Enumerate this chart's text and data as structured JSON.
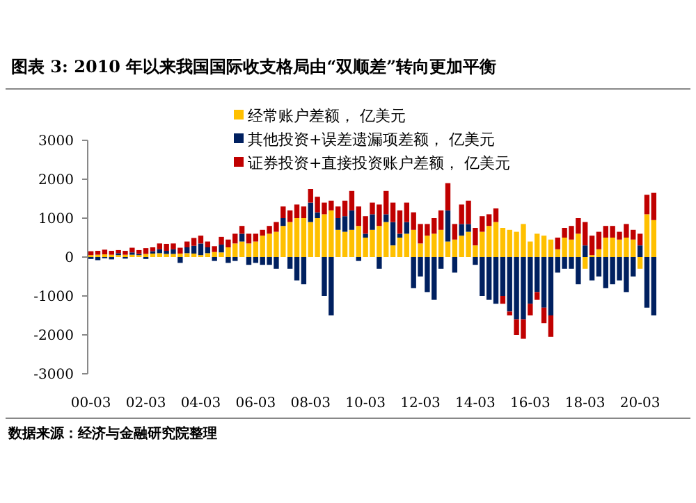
{
  "chart_data": {
    "type": "bar",
    "stacked": true,
    "title": "图表 3: 2010 年以来我国国际收支格局由“双顺差”转向更加平衡",
    "annotations": [
      "数据来源：经济与金融研究院整理"
    ],
    "legend": "top",
    "grid": false,
    "ylim": [
      -3000,
      3000
    ],
    "yticks": [
      -3000,
      -2000,
      -1000,
      0,
      1000,
      2000,
      3000
    ],
    "categories": [
      "00-03",
      null,
      null,
      null,
      null,
      null,
      null,
      null,
      "02-03",
      null,
      null,
      null,
      null,
      null,
      null,
      null,
      "04-03",
      null,
      null,
      null,
      null,
      null,
      null,
      null,
      "06-03",
      null,
      null,
      null,
      null,
      null,
      null,
      null,
      "08-03",
      null,
      null,
      null,
      null,
      null,
      null,
      null,
      "10-03",
      null,
      null,
      null,
      null,
      null,
      null,
      null,
      "12-03",
      null,
      null,
      null,
      null,
      null,
      null,
      null,
      "14-03",
      null,
      null,
      null,
      null,
      null,
      null,
      null,
      "16-03",
      null,
      null,
      null,
      null,
      null,
      null,
      null,
      "18-03",
      null,
      null,
      null,
      null,
      null,
      null,
      null,
      "20-03",
      null,
      null
    ],
    "series": [
      {
        "name": "经常账户差额， 亿美元",
        "color": "#ffc000",
        "values": [
          50,
          60,
          70,
          60,
          50,
          60,
          60,
          50,
          80,
          90,
          100,
          80,
          80,
          90,
          100,
          90,
          50,
          100,
          130,
          120,
          250,
          350,
          400,
          350,
          400,
          550,
          600,
          650,
          800,
          900,
          1000,
          1000,
          900,
          1000,
          1100,
          1200,
          700,
          650,
          700,
          800,
          500,
          700,
          800,
          900,
          300,
          500,
          600,
          700,
          350,
          550,
          600,
          700,
          400,
          450,
          550,
          650,
          300,
          650,
          800,
          900,
          750,
          700,
          650,
          850,
          400,
          600,
          550,
          450,
          200,
          500,
          450,
          600,
          -300,
          50,
          200,
          500,
          500,
          450,
          500,
          450,
          -300,
          1100,
          950
        ]
      },
      {
        "name": "其他投资+误差遗漏项差额， 亿美元",
        "color": "#002060",
        "values": [
          -50,
          -80,
          -30,
          -60,
          50,
          -40,
          60,
          30,
          -50,
          60,
          100,
          80,
          120,
          -150,
          150,
          200,
          300,
          150,
          -100,
          200,
          -150,
          -100,
          200,
          -200,
          -150,
          -200,
          -200,
          -300,
          200,
          -300,
          -600,
          -700,
          500,
          150,
          -1000,
          -1500,
          300,
          400,
          500,
          -100,
          100,
          400,
          -300,
          200,
          600,
          100,
          300,
          -800,
          -500,
          -900,
          -1100,
          -300,
          800,
          -400,
          300,
          200,
          -200,
          -1000,
          -1100,
          -1200,
          -1000,
          -1400,
          -1600,
          -1600,
          -1200,
          -900,
          -1300,
          -1500,
          -400,
          -300,
          -300,
          -700,
          300,
          -600,
          -500,
          -800,
          -700,
          -600,
          -900,
          -500,
          300,
          -1300,
          -1500
        ]
      },
      {
        "name": "证券投资+直接投资账户差额， 亿美元",
        "color": "#c00000",
        "values": [
          100,
          100,
          120,
          100,
          80,
          100,
          120,
          100,
          150,
          100,
          150,
          180,
          150,
          150,
          150,
          200,
          200,
          150,
          150,
          200,
          200,
          250,
          200,
          250,
          200,
          150,
          200,
          250,
          300,
          300,
          350,
          300,
          350,
          400,
          300,
          250,
          300,
          400,
          500,
          500,
          450,
          300,
          550,
          600,
          500,
          600,
          500,
          450,
          500,
          300,
          400,
          500,
          700,
          400,
          500,
          600,
          450,
          400,
          300,
          350,
          -200,
          -100,
          -400,
          -500,
          -300,
          -200,
          -400,
          -550,
          300,
          250,
          350,
          400,
          600,
          500,
          450,
          300,
          300,
          200,
          350,
          250,
          300,
          500,
          700
        ]
      }
    ]
  }
}
